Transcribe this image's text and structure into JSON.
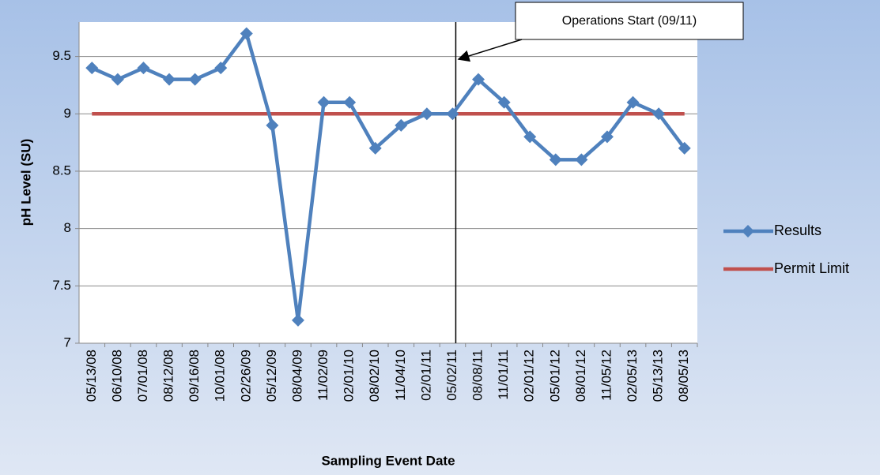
{
  "chart_data": {
    "type": "line",
    "xlabel": "Sampling Event Date",
    "ylabel": "pH Level (SU)",
    "annotation": "Operations Start (09/11)",
    "categories": [
      "05/13/08",
      "06/10/08",
      "07/01/08",
      "08/12/08",
      "09/16/08",
      "10/01/08",
      "02/26/09",
      "05/12/09",
      "08/04/09",
      "11/02/09",
      "02/01/10",
      "08/02/10",
      "11/04/10",
      "02/01/11",
      "05/02/11",
      "08/08/11",
      "11/01/11",
      "02/01/12",
      "05/01/12",
      "08/01/12",
      "11/05/12",
      "02/05/13",
      "05/13/13",
      "08/05/13"
    ],
    "series": [
      {
        "name": "Results",
        "color": "#4f81bd",
        "marker": "diamond",
        "values": [
          9.4,
          9.3,
          9.4,
          9.3,
          9.3,
          9.4,
          9.7,
          8.9,
          7.2,
          9.1,
          9.1,
          8.7,
          8.9,
          9.0,
          9.0,
          9.3,
          9.1,
          8.8,
          8.6,
          8.6,
          8.8,
          9.1,
          9.0,
          8.7
        ]
      },
      {
        "name": "Permit Limit",
        "color": "#c0504d",
        "values": [
          9,
          9,
          9,
          9,
          9,
          9,
          9,
          9,
          9,
          9,
          9,
          9,
          9,
          9,
          9,
          9,
          9,
          9,
          9,
          9,
          9,
          9,
          9,
          9
        ]
      }
    ],
    "ylim": [
      7,
      9.8
    ],
    "yticks": [
      7,
      7.5,
      8,
      8.5,
      9,
      9.5
    ],
    "grid": true,
    "legend": "right"
  }
}
